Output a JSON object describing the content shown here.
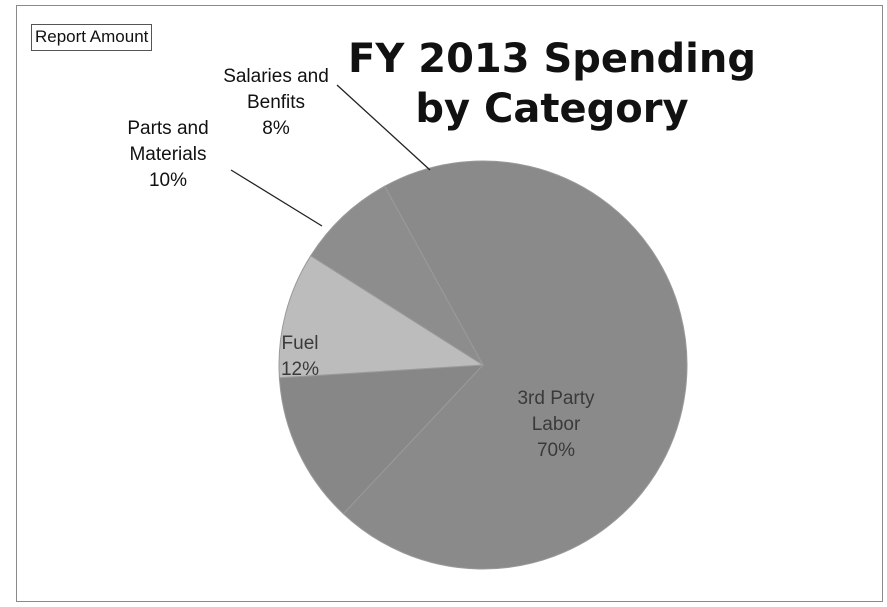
{
  "report_button": {
    "label": "Report Amount"
  },
  "chart_data": {
    "type": "pie",
    "title_lines": [
      "FY 2013 Spending",
      "by Category"
    ],
    "slices": [
      {
        "label_lines": [
          "3rd Party",
          "Labor"
        ],
        "pct_label": "70%",
        "value": 70,
        "color": "#8a8a8a",
        "label_side": "inside"
      },
      {
        "label_lines": [
          "Fuel"
        ],
        "pct_label": "12%",
        "value": 12,
        "color": "#878787",
        "label_side": "inside"
      },
      {
        "label_lines": [
          "Parts and",
          "Materials"
        ],
        "pct_label": "10%",
        "value": 10,
        "color": "#bcbcbc",
        "label_side": "outside"
      },
      {
        "label_lines": [
          "Salaries and",
          "Benfits"
        ],
        "pct_label": "8%",
        "value": 8,
        "color": "#8d8d8d",
        "label_side": "outside"
      }
    ]
  }
}
